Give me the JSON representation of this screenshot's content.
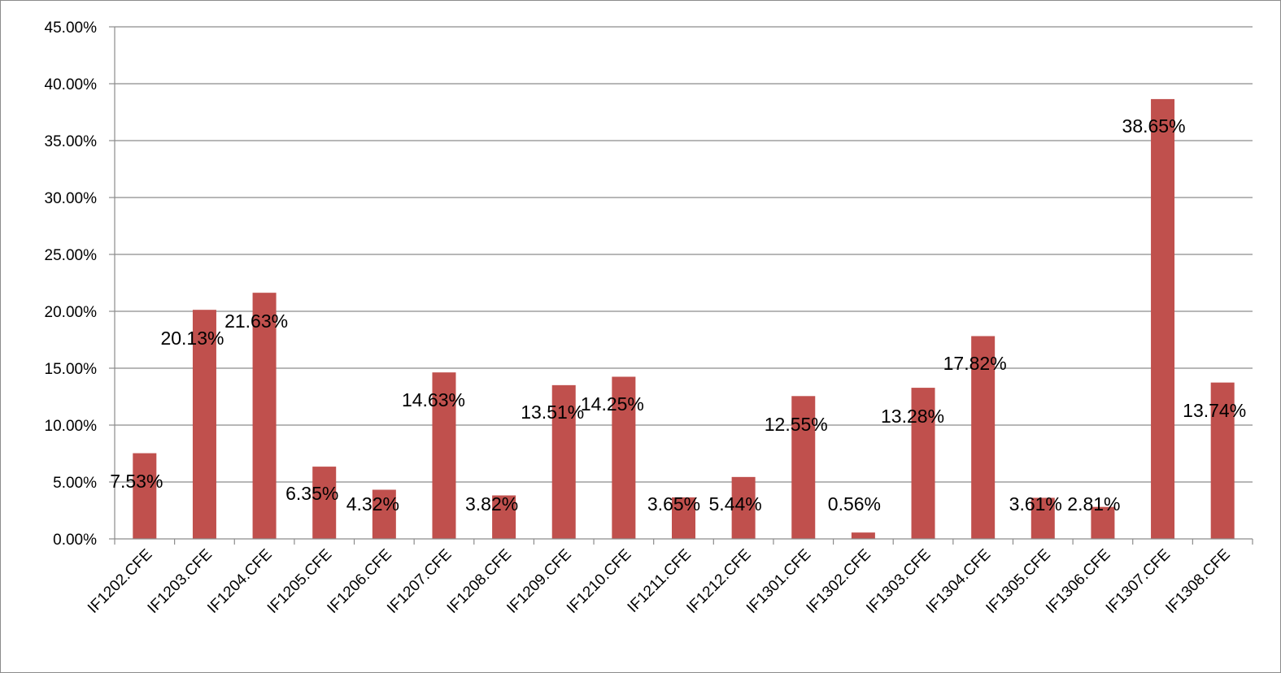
{
  "chart_data": {
    "type": "bar",
    "title": "",
    "xlabel": "",
    "ylabel": "",
    "ylim": [
      0,
      45
    ],
    "y_ticks": [
      "0.00%",
      "5.00%",
      "10.00%",
      "15.00%",
      "20.00%",
      "25.00%",
      "30.00%",
      "35.00%",
      "40.00%",
      "45.00%"
    ],
    "grid": true,
    "legend": "none",
    "bar_color": "#c0504d",
    "categories": [
      "IF1202.CFE",
      "IF1203.CFE",
      "IF1204.CFE",
      "IF1205.CFE",
      "IF1206.CFE",
      "IF1207.CFE",
      "IF1208.CFE",
      "IF1209.CFE",
      "IF1210.CFE",
      "IF1211.CFE",
      "IF1212.CFE",
      "IF1301.CFE",
      "IF1302.CFE",
      "IF1303.CFE",
      "IF1304.CFE",
      "IF1305.CFE",
      "IF1306.CFE",
      "IF1307.CFE",
      "IF1308.CFE"
    ],
    "values": [
      7.53,
      20.13,
      21.63,
      6.35,
      4.32,
      14.63,
      3.82,
      13.51,
      14.25,
      3.65,
      5.44,
      12.55,
      0.56,
      13.28,
      17.82,
      3.61,
      2.81,
      38.65,
      13.74
    ],
    "data_labels": [
      "7.53%",
      "20.13%",
      "21.63%",
      "6.35%",
      "4.32%",
      "14.63%",
      "3.82%",
      "13.51%",
      "14.25%",
      "3.65%",
      "5.44%",
      "12.55%",
      "0.56%",
      "13.28%",
      "17.82%",
      "3.61%",
      "2.81%",
      "38.65%",
      "13.74%"
    ]
  }
}
